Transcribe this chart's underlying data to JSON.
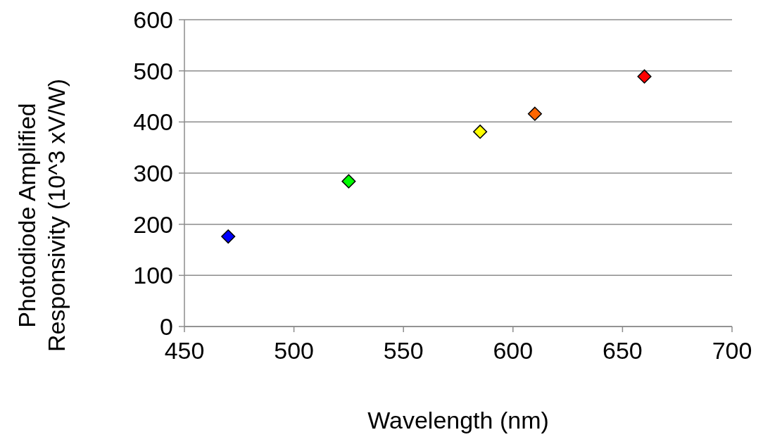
{
  "chart_data": {
    "type": "scatter",
    "xlabel": "Wavelength (nm)",
    "ylabel": "Photodiode Amplified\nResponsivity (10^3 xV/W)",
    "x": [
      470,
      525,
      585,
      610,
      660
    ],
    "values": [
      176,
      284,
      381,
      416,
      489
    ],
    "colors": [
      "#0000ff",
      "#00ff00",
      "#ffff00",
      "#ff6600",
      "#ff0000"
    ],
    "xlim": [
      450,
      700
    ],
    "xticks": [
      450,
      500,
      550,
      600,
      650,
      700
    ],
    "ylim": [
      0,
      600
    ],
    "yticks": [
      0,
      100,
      200,
      300,
      400,
      500,
      600
    ],
    "grid": "y",
    "marker": "diamond"
  }
}
